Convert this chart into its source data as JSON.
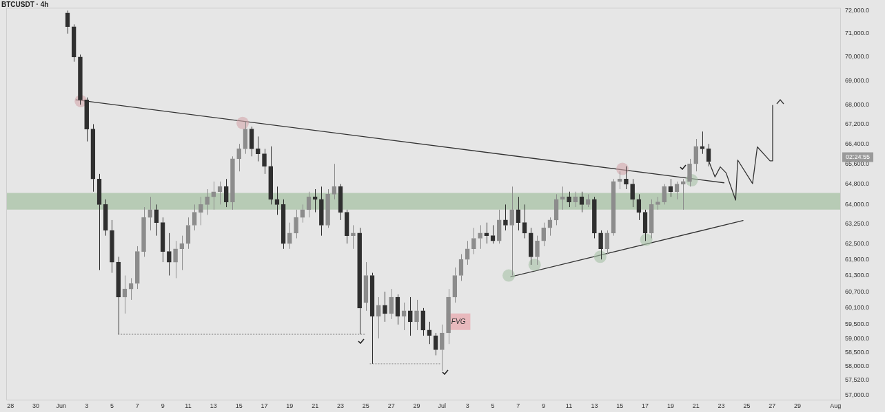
{
  "chart_data": {
    "type": "candlestick",
    "title": "BTCUSDT · 4h",
    "colors": [
      "#2f2f2f",
      "#2f2f2f",
      "#2f2f2f",
      "#2f2f2f",
      "#2f2f2f",
      "#2f2f2f",
      "#2f2f2f",
      "#2f2f2f",
      "#2f2f2f",
      "#8c8c8c",
      "#8c8c8c",
      "#8c8c8c",
      "#8c8c8c",
      "#8c8c8c",
      "#2f2f2f",
      "#2f2f2f",
      "#2f2f2f",
      "#8c8c8c",
      "#8c8c8c",
      "#8c8c8c",
      "#8c8c8c",
      "#8c8c8c",
      "#8c8c8c",
      "#8c8c8c",
      "#8c8c8c",
      "#2f2f2f",
      "#8c8c8c",
      "#8c8c8c",
      "#8c8c8c",
      "#2f2f2f",
      "#2f2f2f",
      "#2f2f2f",
      "#2f2f2f",
      "#2f2f2f",
      "#2f2f2f",
      "#8c8c8c",
      "#8c8c8c",
      "#8c8c8c",
      "#8c8c8c",
      "#2f2f2f",
      "#2f2f2f",
      "#8c8c8c",
      "#8c8c8c",
      "#2f2f2f",
      "#2f2f2f",
      "#8c8c8c",
      "#2f2f2f",
      "#8c8c8c",
      "#2f2f2f",
      "#8c8c8c",
      "#2f2f2f",
      "#8c8c8c",
      "#2f2f2f",
      "#8c8c8c",
      "#2f2f2f",
      "#8c8c8c",
      "#2f2f2f",
      "#2f2f2f",
      "#2f2f2f",
      "#8c8c8c",
      "#8c8c8c",
      "#8c8c8c",
      "#8c8c8c",
      "#8c8c8c",
      "#8c8c8c",
      "#8c8c8c",
      "#2f2f2f",
      "#2f2f2f",
      "#8c8c8c",
      "#2f2f2f",
      "#8c8c8c",
      "#2f2f2f",
      "#2f2f2f",
      "#2f2f2f",
      "#8c8c8c",
      "#8c8c8c",
      "#8c8c8c",
      "#8c8c8c",
      "#8c8c8c",
      "#2f2f2f",
      "#8c8c8c",
      "#2f2f2f",
      "#8c8c8c",
      "#2f2f2f",
      "#2f2f2f",
      "#8c8c8c",
      "#8c8c8c",
      "#8c8c8c",
      "#2f2f2f",
      "#2f2f2f",
      "#2f2f2f",
      "#2f2f2f",
      "#8c8c8c",
      "#8c8c8c",
      "#8c8c8c",
      "#2f2f2f",
      "#8c8c8c",
      "#8c8c8c",
      "#8c8c8c",
      "#8c8c8c",
      "#2f2f2f",
      "#2f2f2f"
    ],
    "x": [
      "--06-01T12:00",
      "--06-02T00:00",
      "--06-02T12:00",
      "--06-03T00:00",
      "--06-03T12:00",
      "--06-04T00:00",
      "--06-04T12:00",
      "--06-05T00:00",
      "--06-05T12:00",
      "--06-06T00:00",
      "--06-06T12:00",
      "--06-07T00:00",
      "--06-07T12:00",
      "--06-08T00:00",
      "--06-08T12:00",
      "--06-09T00:00",
      "--06-09T12:00",
      "--06-10T00:00",
      "--06-10T12:00",
      "--06-11T00:00",
      "--06-11T12:00",
      "--06-12T00:00",
      "--06-12T12:00",
      "--06-13T00:00",
      "--06-13T12:00",
      "--06-14T00:00",
      "--06-14T12:00",
      "--06-15T00:00",
      "--06-15T12:00",
      "--06-16T00:00",
      "--06-16T12:00",
      "--06-17T00:00",
      "--06-17T12:00",
      "--06-18T00:00",
      "--06-18T12:00",
      "--06-19T00:00",
      "--06-19T12:00",
      "--06-20T00:00",
      "--06-20T12:00",
      "--06-21T00:00",
      "--06-21T12:00",
      "--06-22T00:00",
      "--06-22T12:00",
      "--06-23T00:00",
      "--06-23T12:00",
      "--06-24T00:00",
      "--06-24T12:00",
      "--06-25T00:00",
      "--06-25T12:00",
      "--06-26T00:00",
      "--06-26T12:00",
      "--06-27T00:00",
      "--06-27T12:00",
      "--06-28T00:00",
      "--06-28T12:00",
      "--06-29T00:00",
      "--06-29T12:00",
      "--06-30T00:00",
      "--06-30T12:00",
      "--07-01T00:00",
      "--07-01T12:00",
      "--07-02T00:00",
      "--07-02T12:00",
      "--07-03T00:00",
      "--07-03T12:00",
      "--07-04T00:00",
      "--07-04T12:00",
      "--07-05T00:00",
      "--07-05T12:00",
      "--07-06T00:00",
      "--07-06T12:00",
      "--07-07T00:00",
      "--07-07T12:00",
      "--07-08T00:00",
      "--07-08T12:00",
      "--07-09T00:00",
      "--07-09T12:00",
      "--07-10T00:00",
      "--07-10T12:00",
      "--07-11T00:00",
      "--07-11T12:00",
      "--07-12T00:00",
      "--07-12T12:00",
      "--07-13T00:00",
      "--07-13T12:00",
      "--07-14T00:00",
      "--07-14T12:00",
      "--07-15T00:00",
      "--07-15T12:00",
      "--07-16T00:00",
      "--07-16T12:00",
      "--07-17T00:00",
      "--07-17T12:00",
      "--07-18T00:00",
      "--07-18T12:00",
      "--07-19T00:00",
      "--07-19T12:00",
      "--07-20T00:00",
      "--07-20T12:00",
      "--07-21T00:00",
      "--07-21T12:00",
      "--07-22T00:00"
    ],
    "ohlc": [
      [
        71900,
        72000,
        71000,
        71300
      ],
      [
        71300,
        71400,
        69800,
        70000
      ],
      [
        70000,
        70100,
        68000,
        68200
      ],
      [
        68200,
        68300,
        66500,
        67000
      ],
      [
        67000,
        67200,
        64500,
        65000
      ],
      [
        65000,
        65200,
        61500,
        64000
      ],
      [
        64000,
        64200,
        62800,
        63000
      ],
      [
        63000,
        63400,
        61400,
        61800
      ],
      [
        61800,
        62000,
        59150,
        60500
      ],
      [
        60500,
        61300,
        59900,
        60800
      ],
      [
        60800,
        61200,
        60400,
        61000
      ],
      [
        61000,
        62400,
        60800,
        62200
      ],
      [
        62200,
        63900,
        62000,
        63500
      ],
      [
        63500,
        64300,
        63000,
        63800
      ],
      [
        63800,
        64000,
        62800,
        63300
      ],
      [
        63300,
        63500,
        61800,
        62200
      ],
      [
        62200,
        62900,
        61300,
        61800
      ],
      [
        61800,
        62600,
        61200,
        62300
      ],
      [
        62300,
        62800,
        61500,
        62500
      ],
      [
        62500,
        63500,
        62300,
        63200
      ],
      [
        63200,
        64000,
        63000,
        63700
      ],
      [
        63700,
        64300,
        63200,
        64000
      ],
      [
        64000,
        64600,
        63600,
        64300
      ],
      [
        64300,
        64900,
        63800,
        64500
      ],
      [
        64500,
        64900,
        64000,
        64700
      ],
      [
        64700,
        65000,
        63900,
        64100
      ],
      [
        64100,
        65900,
        63800,
        65800
      ],
      [
        65800,
        66400,
        65300,
        66200
      ],
      [
        66200,
        67300,
        66000,
        67000
      ],
      [
        67000,
        67100,
        65900,
        66200
      ],
      [
        66200,
        66700,
        65700,
        66000
      ],
      [
        66000,
        66200,
        65200,
        65500
      ],
      [
        65500,
        66300,
        64000,
        64200
      ],
      [
        64200,
        64700,
        63600,
        64000
      ],
      [
        64000,
        64200,
        62300,
        62500
      ],
      [
        62500,
        63300,
        62300,
        62900
      ],
      [
        62900,
        63800,
        62700,
        63500
      ],
      [
        63500,
        64000,
        63300,
        63800
      ],
      [
        63800,
        64500,
        63500,
        64300
      ],
      [
        64300,
        64600,
        63700,
        64200
      ],
      [
        64200,
        64700,
        62800,
        63200
      ],
      [
        63200,
        64600,
        63100,
        64400
      ],
      [
        64400,
        65600,
        64200,
        64700
      ],
      [
        64700,
        64800,
        63400,
        63700
      ],
      [
        63700,
        63800,
        62500,
        62800
      ],
      [
        62800,
        63200,
        62300,
        62900
      ],
      [
        62900,
        63100,
        59150,
        60100
      ],
      [
        60300,
        61800,
        60000,
        61300
      ],
      [
        61300,
        61400,
        58100,
        59800
      ],
      [
        59800,
        60500,
        59000,
        60200
      ],
      [
        60200,
        60700,
        59600,
        59900
      ],
      [
        59900,
        60800,
        59700,
        60500
      ],
      [
        60500,
        60600,
        59500,
        59800
      ],
      [
        59800,
        60300,
        59300,
        60000
      ],
      [
        60000,
        60500,
        59100,
        59600
      ],
      [
        59600,
        60400,
        59300,
        60000
      ],
      [
        60000,
        60100,
        59100,
        59300
      ],
      [
        59300,
        59600,
        58800,
        59100
      ],
      [
        59100,
        59200,
        58400,
        58600
      ],
      [
        58600,
        59500,
        57850,
        59200
      ],
      [
        59200,
        60800,
        58800,
        60500
      ],
      [
        60500,
        61600,
        60300,
        61300
      ],
      [
        61300,
        62100,
        61100,
        61900
      ],
      [
        61900,
        62600,
        61700,
        62300
      ],
      [
        62300,
        63100,
        62100,
        62700
      ],
      [
        62700,
        63200,
        62300,
        62900
      ],
      [
        62900,
        63300,
        62500,
        62800
      ],
      [
        62800,
        63200,
        62500,
        62600
      ],
      [
        62600,
        63800,
        62500,
        63400
      ],
      [
        63400,
        64000,
        63000,
        63200
      ],
      [
        63200,
        64700,
        61300,
        63800
      ],
      [
        63800,
        64300,
        63000,
        63300
      ],
      [
        63300,
        64000,
        62700,
        62900
      ],
      [
        62900,
        63100,
        61700,
        62000
      ],
      [
        62000,
        62800,
        61700,
        62600
      ],
      [
        62600,
        63300,
        62400,
        63100
      ],
      [
        63100,
        63500,
        62800,
        63400
      ],
      [
        63400,
        64400,
        63200,
        64200
      ],
      [
        64200,
        64700,
        63800,
        64300
      ],
      [
        64300,
        64500,
        63900,
        64100
      ],
      [
        64100,
        64500,
        63900,
        64300
      ],
      [
        64300,
        64500,
        63700,
        64000
      ],
      [
        64000,
        64400,
        63900,
        64200
      ],
      [
        64200,
        64300,
        62700,
        62900
      ],
      [
        62900,
        63000,
        61900,
        62300
      ],
      [
        62300,
        63000,
        62100,
        62900
      ],
      [
        62900,
        65000,
        62800,
        64900
      ],
      [
        64900,
        65300,
        64600,
        65000
      ],
      [
        65000,
        65500,
        64600,
        64800
      ],
      [
        64800,
        65000,
        63900,
        64200
      ],
      [
        64200,
        64400,
        63400,
        63700
      ],
      [
        63700,
        63800,
        62600,
        62900
      ],
      [
        62900,
        64200,
        62700,
        64000
      ],
      [
        64000,
        64300,
        63800,
        64100
      ],
      [
        64100,
        64800,
        64000,
        64700
      ],
      [
        64700,
        65000,
        64300,
        64500
      ],
      [
        64500,
        64900,
        64200,
        64800
      ],
      [
        64800,
        65000,
        63800,
        64900
      ],
      [
        64900,
        65800,
        64700,
        65600
      ],
      [
        65600,
        66600,
        65300,
        66300
      ],
      [
        66300,
        66900,
        66000,
        66200
      ],
      [
        66200,
        66400,
        65500,
        65700
      ]
    ],
    "series": [
      {
        "type": "line",
        "color": "#333333",
        "x": [
          "--06-02T04:00",
          "--07-23T05:00"
        ],
        "values": [
          68200,
          64850
        ]
      },
      {
        "type": "line",
        "color": "#333333",
        "x": [
          "--07-06T10:00",
          "--07-24T17:00"
        ],
        "values": [
          61250,
          63380
        ]
      },
      {
        "type": "line",
        "color": "#999999",
        "line_style": "dotted",
        "x": [
          "--06-05T12:00",
          "--06-24T22:00"
        ],
        "values": [
          59150,
          59150
        ]
      },
      {
        "type": "line",
        "color": "#999999",
        "line_style": "dotted",
        "x": [
          "--06-25T08:00",
          "--06-30T20:00"
        ],
        "values": [
          58100,
          58100
        ]
      },
      {
        "type": "line",
        "color": "#333333",
        "x": [
          "--07-22T00:00",
          "--07-22T12:00",
          "--07-22T22:00",
          "--07-23T09:00",
          "--07-24T03:00",
          "--07-24T07:00",
          "--07-25T11:00",
          "--07-25T20:00",
          "--07-26T20:00",
          "--07-27T01:00",
          "--07-27T01:00"
        ],
        "values": [
          65720,
          65080,
          65480,
          65240,
          64170,
          65750,
          64820,
          66280,
          65720,
          65720,
          67970
        ]
      },
      {
        "type": "scatter",
        "marker": "circle",
        "color": "#d4a6ab",
        "x": [
          "--06-02T13:00",
          "--06-15T07:00",
          "--07-15T05:00"
        ],
        "values": [
          68150,
          67250,
          65400
        ]
      },
      {
        "type": "scatter",
        "marker": "circle",
        "color": "#a6c2a6",
        "x": [
          "--07-06T06:00",
          "--07-08T07:00",
          "--07-13T11:00",
          "--07-17T02:00",
          "--07-20T16:00"
        ],
        "values": [
          61300,
          61700,
          62000,
          62650,
          64950
        ]
      }
    ],
    "bands": [
      {
        "axis": "y",
        "from": 63800,
        "to": 64450,
        "color": "#b7cbb5"
      }
    ],
    "annotations": [
      {
        "text": "FVG",
        "x": "--07-02T07:00",
        "y": 59600
      },
      "02:24:55"
    ],
    "xlim": [
      "--05-27T16:00",
      "--08-01T10:00"
    ],
    "xticks": [
      {
        "value": "--05-28",
        "label": "28"
      },
      {
        "value": "--05-30",
        "label": "30"
      },
      {
        "value": "--06-01",
        "label": "Jun"
      },
      {
        "value": "--06-03",
        "label": "3"
      },
      {
        "value": "--06-05",
        "label": "5"
      },
      {
        "value": "--06-07",
        "label": "7"
      },
      {
        "value": "--06-09",
        "label": "9"
      },
      {
        "value": "--06-11",
        "label": "11"
      },
      {
        "value": "--06-13",
        "label": "13"
      },
      {
        "value": "--06-15",
        "label": "15"
      },
      {
        "value": "--06-17",
        "label": "17"
      },
      {
        "value": "--06-19",
        "label": "19"
      },
      {
        "value": "--06-21",
        "label": "21"
      },
      {
        "value": "--06-23",
        "label": "23"
      },
      {
        "value": "--06-25",
        "label": "25"
      },
      {
        "value": "--06-27",
        "label": "27"
      },
      {
        "value": "--06-29",
        "label": "29"
      },
      {
        "value": "--07-01",
        "label": "Jul"
      },
      {
        "value": "--07-03",
        "label": "3"
      },
      {
        "value": "--07-05",
        "label": "5"
      },
      {
        "value": "--07-07",
        "label": "7"
      },
      {
        "value": "--07-09",
        "label": "9"
      },
      {
        "value": "--07-11",
        "label": "11"
      },
      {
        "value": "--07-13",
        "label": "13"
      },
      {
        "value": "--07-15",
        "label": "15"
      },
      {
        "value": "--07-17",
        "label": "17"
      },
      {
        "value": "--07-19",
        "label": "19"
      },
      {
        "value": "--07-21",
        "label": "21"
      },
      {
        "value": "--07-23",
        "label": "23"
      },
      {
        "value": "--07-25",
        "label": "25"
      },
      {
        "value": "--07-27",
        "label": "27"
      },
      {
        "value": "--07-29",
        "label": "29"
      },
      {
        "value": "--08-01",
        "label": "Aug"
      }
    ],
    "ylim": [
      56820,
      72120
    ],
    "yticks": [
      {
        "value": 57000,
        "label": "57,000.0"
      },
      {
        "value": 57520,
        "label": "57,520.0"
      },
      {
        "value": 58000,
        "label": "58,000.0"
      },
      {
        "value": 58500,
        "label": "58,500.0"
      },
      {
        "value": 59000,
        "label": "59,000.0"
      },
      {
        "value": 59500,
        "label": "59,500.0"
      },
      {
        "value": 60100,
        "label": "60,100.0"
      },
      {
        "value": 60700,
        "label": "60,700.0"
      },
      {
        "value": 61300,
        "label": "61,300.0"
      },
      {
        "value": 61900,
        "label": "61,900.0"
      },
      {
        "value": 62500,
        "label": "62,500.0"
      },
      {
        "value": 63250,
        "label": "63,250.0"
      },
      {
        "value": 64000,
        "label": "64,000.0"
      },
      {
        "value": 64800,
        "label": "64,800.0"
      },
      {
        "value": 65600,
        "label": "65,600.0"
      },
      {
        "value": 66400,
        "label": "66,400.0"
      },
      {
        "value": 67200,
        "label": "67,200.0"
      },
      {
        "value": 68000,
        "label": "68,000.0"
      },
      {
        "value": 69000,
        "label": "69,000.0"
      },
      {
        "value": 70000,
        "label": "70,000.0"
      },
      {
        "value": 71000,
        "label": "71,000.0"
      },
      {
        "value": 72000,
        "label": "72,000.0"
      }
    ],
    "log": true,
    "grid": false,
    "legend": false
  }
}
